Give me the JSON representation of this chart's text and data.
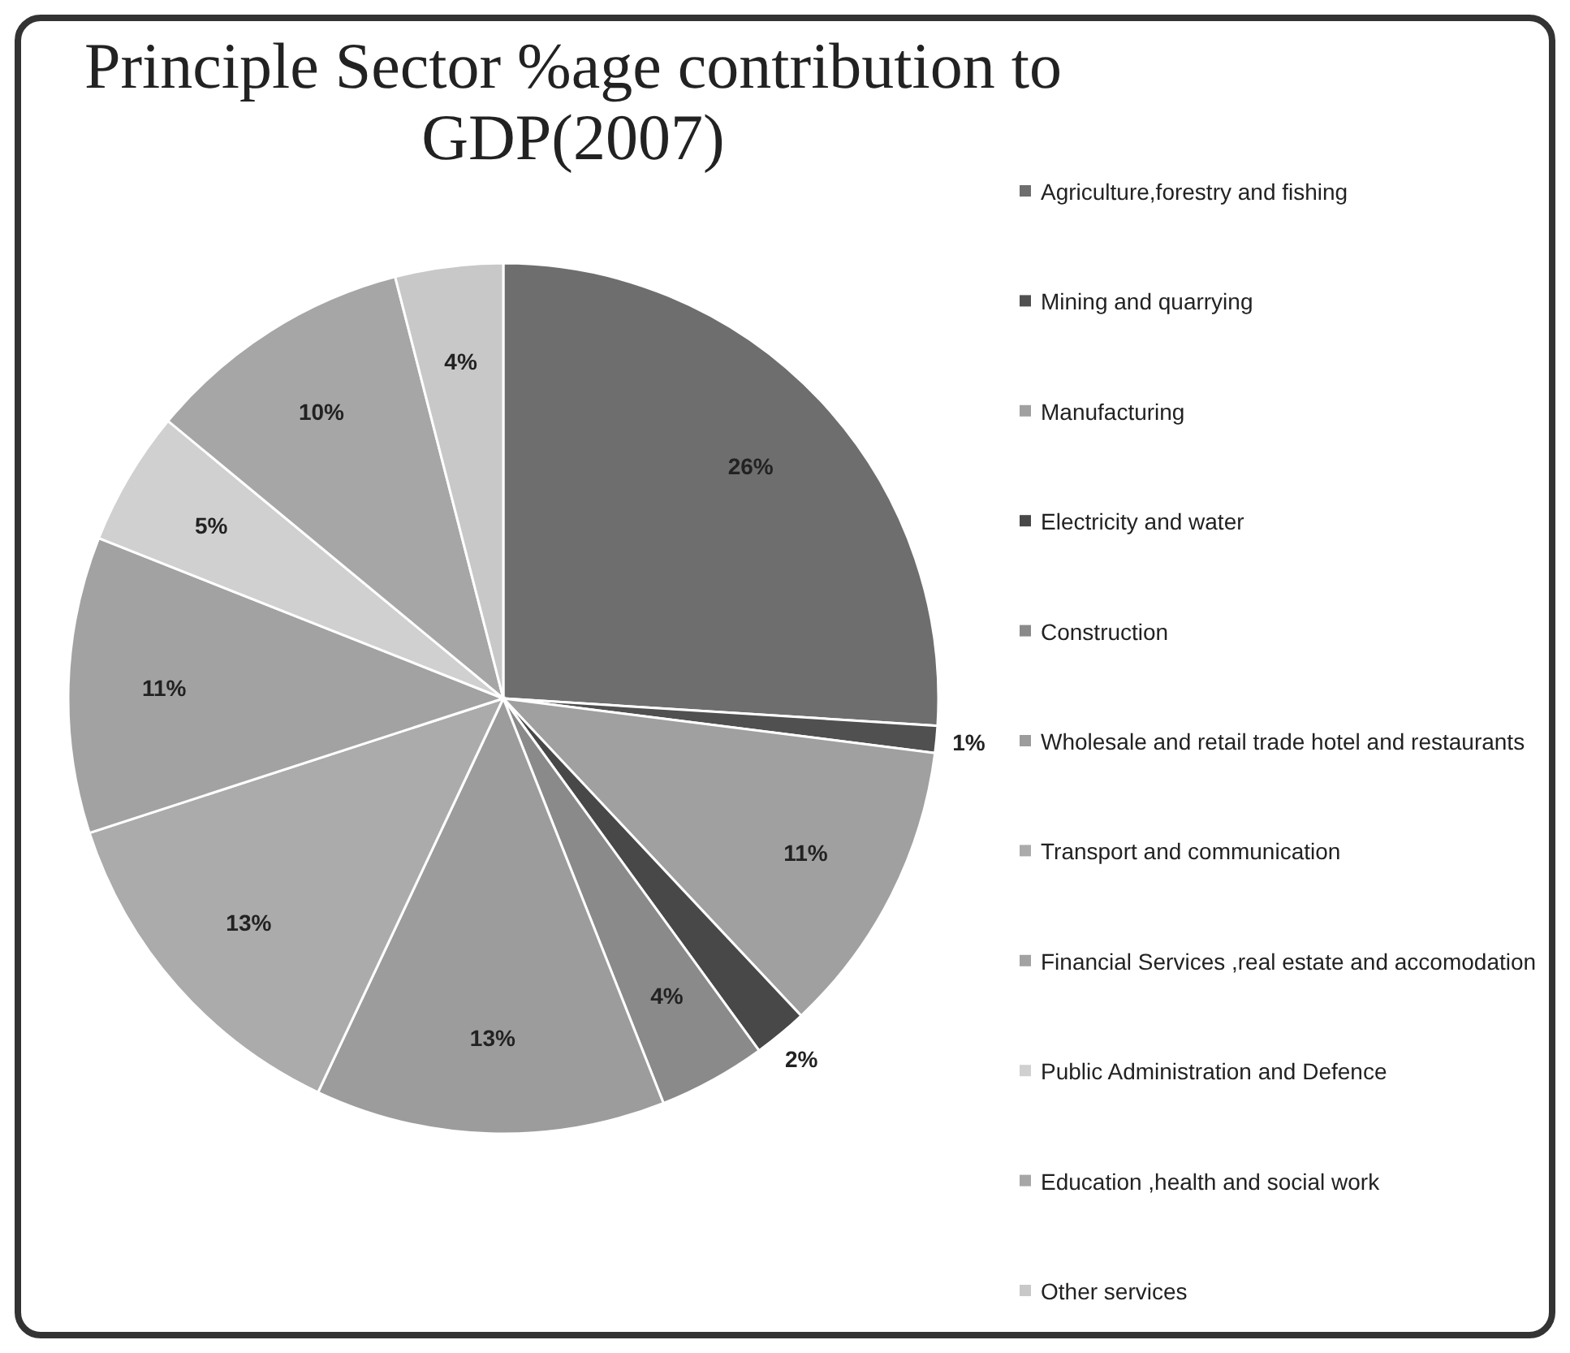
{
  "chart_data": {
    "type": "pie",
    "title": "Principle Sector %age contribution to GDP(2007)",
    "categories": [
      "Agriculture,forestry and fishing",
      "Mining and quarrying",
      "Manufacturing",
      "Electricity and water",
      "Construction",
      "Wholesale and retail trade hotel and restaurants",
      "Transport and communication",
      "Financial Services ,real estate and accomodation",
      "Public Administration and Defence",
      "Education ,health and social work",
      "Other services"
    ],
    "values": [
      26,
      1,
      11,
      2,
      4,
      13,
      13,
      11,
      5,
      10,
      4
    ],
    "value_labels": [
      "26%",
      "1%",
      "11%",
      "2%",
      "4%",
      "13%",
      "13%",
      "11%",
      "5%",
      "10%",
      "4%"
    ],
    "colors": [
      "#6e6e6e",
      "#505050",
      "#a0a0a0",
      "#484848",
      "#8a8a8a",
      "#9c9c9c",
      "#ababab",
      "#a2a2a2",
      "#d0d0d0",
      "#a6a6a6",
      "#c8c8c8"
    ],
    "legend": "right"
  }
}
